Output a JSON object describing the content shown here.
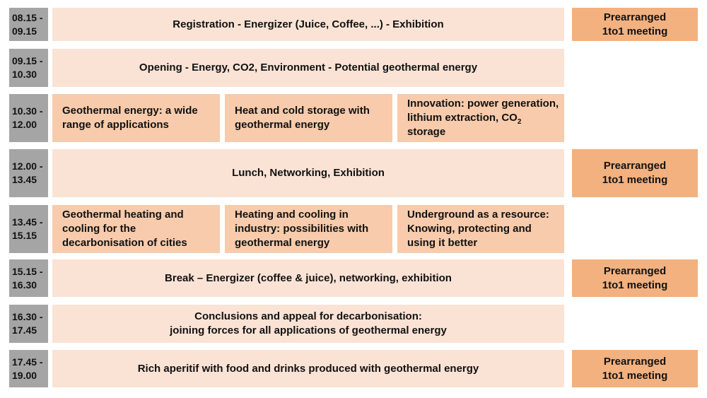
{
  "rows": [
    {
      "time": [
        "08.15 -",
        "09.15"
      ],
      "title": [
        "Registration - Energizer (Juice, Coffee, ...) - Exhibition"
      ],
      "side": [
        "Prearranged",
        "1to1 meeting"
      ]
    },
    {
      "time": [
        "09.15 -",
        "10.30"
      ],
      "title": [
        "Opening - Energy, CO2, Environment - Potential geothermal energy"
      ]
    },
    {
      "time": [
        "10.30 -",
        "12.00"
      ],
      "sessions": [
        "Geothermal energy: a wide range of applications",
        "Heat and cold storage with geothermal energy",
        "Innovation: power generation, lithium extraction, CO2 storage"
      ]
    },
    {
      "time": [
        "12.00 -",
        "13.45"
      ],
      "title": [
        "Lunch, Networking, Exhibition"
      ],
      "side": [
        "Prearranged",
        "1to1 meeting"
      ]
    },
    {
      "time": [
        "13.45 -",
        "15.15"
      ],
      "sessions": [
        "Geothermal heating and cooling for the decarbonisation of cities",
        "Heating and cooling in industry: possibilities with geothermal energy",
        "Underground as a resource: Knowing, protecting and using it better"
      ]
    },
    {
      "time": [
        "15.15 -",
        "16.30"
      ],
      "title": [
        "Break – Energizer (coffee & juice), networking, exhibition"
      ],
      "side": [
        "Prearranged",
        "1to1 meeting"
      ]
    },
    {
      "time": [
        "16.30 -",
        "17.45"
      ],
      "title": [
        "Conclusions and appeal for decarbonisation:",
        "joining forces for all applications of geothermal energy"
      ]
    },
    {
      "time": [
        "17.45 -",
        "19.00"
      ],
      "title": [
        "Rich aperitif with food and drinks produced with geothermal energy"
      ],
      "side": [
        "Prearranged",
        "1to1 meeting"
      ]
    }
  ],
  "session3_parts": {
    "before": "Innovation: power generation, lithium extraction, CO",
    "sub": "2",
    "after": " storage"
  },
  "colors": {
    "time_bg": "#a5a5a5",
    "plenary_bg": "#fae3d5",
    "session_bg": "#f7cbab",
    "meeting_bg": "#f2b17f"
  }
}
